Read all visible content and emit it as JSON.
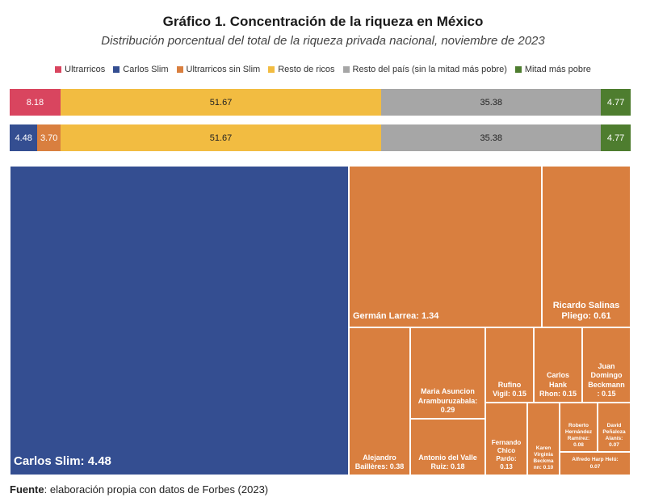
{
  "title": "Gráfico 1. Concentración de la riqueza en México",
  "subtitle": "Distribución porcentual del total de la riqueza privada nacional, noviembre de 2023",
  "legend": [
    {
      "label": "Ultrarricos",
      "color": "#d9455f"
    },
    {
      "label": "Carlos Slim",
      "color": "#344e91"
    },
    {
      "label": "Ultrarricos sin Slim",
      "color": "#d97f3f"
    },
    {
      "label": "Resto de ricos",
      "color": "#f2bc41"
    },
    {
      "label": "Resto del país (sin la mitad más pobre)",
      "color": "#a6a6a6"
    },
    {
      "label": "Mitad más pobre",
      "color": "#4e7d2f"
    }
  ],
  "chart_data": [
    {
      "type": "bar",
      "orientation": "horizontal-stacked",
      "series": [
        {
          "name": "Ultrarricos",
          "value": 8.18,
          "label": "8.18",
          "color": "#d9455f"
        },
        {
          "name": "Resto de ricos",
          "value": 51.67,
          "label": "51.67",
          "color": "#f2bc41"
        },
        {
          "name": "Resto del país (sin la mitad más pobre)",
          "value": 35.38,
          "label": "35.38",
          "color": "#a6a6a6"
        },
        {
          "name": "Mitad más pobre",
          "value": 4.77,
          "label": "4.77",
          "color": "#4e7d2f"
        }
      ]
    },
    {
      "type": "bar",
      "orientation": "horizontal-stacked",
      "series": [
        {
          "name": "Carlos Slim",
          "value": 4.48,
          "label": "4.48",
          "color": "#344e91"
        },
        {
          "name": "Ultrarricos sin Slim",
          "value": 3.7,
          "label": "3.70",
          "color": "#d97f3f"
        },
        {
          "name": "Resto de ricos",
          "value": 51.67,
          "label": "51.67",
          "color": "#f2bc41"
        },
        {
          "name": "Resto del país (sin la mitad más pobre)",
          "value": 35.38,
          "label": "35.38",
          "color": "#a6a6a6"
        },
        {
          "name": "Mitad más pobre",
          "value": 4.77,
          "label": "4.77",
          "color": "#4e7d2f"
        }
      ]
    },
    {
      "type": "treemap",
      "items": [
        {
          "name": "Carlos Slim",
          "value": 4.48,
          "label": "Carlos Slim: 4.48",
          "color": "#344e91"
        },
        {
          "name": "Germán Larrea",
          "value": 1.34,
          "label": "Germán Larrea: 1.34",
          "color": "#d97f3f"
        },
        {
          "name": "Ricardo Salinas Pliego",
          "value": 0.61,
          "label": "Ricardo Salinas\nPliego: 0.61",
          "color": "#d97f3f"
        },
        {
          "name": "Alejandro Baillères",
          "value": 0.38,
          "label": "Alejandro\nBaillères: 0.38",
          "color": "#d97f3f"
        },
        {
          "name": "Maria Asuncion Aramburuzabala",
          "value": 0.29,
          "label": "Maria Asuncion\nAramburuzabala:\n0.29",
          "color": "#d97f3f"
        },
        {
          "name": "Antonio del Valle Ruiz",
          "value": 0.18,
          "label": "Antonio del Valle\nRuiz: 0.18",
          "color": "#d97f3f"
        },
        {
          "name": "Rufino Vigil",
          "value": 0.15,
          "label": "Rufino\nVigil: 0.15",
          "color": "#d97f3f"
        },
        {
          "name": "Carlos Hank Rhon",
          "value": 0.15,
          "label": "Carlos\nHank\nRhon: 0.15",
          "color": "#d97f3f"
        },
        {
          "name": "Juan Domingo Beckmann",
          "value": 0.15,
          "label": "Juan\nDomingo\nBeckmann\n: 0.15",
          "color": "#d97f3f"
        },
        {
          "name": "Fernando Chico Pardo",
          "value": 0.13,
          "label": "Fernando\nChico\nPardo:\n0.13",
          "color": "#d97f3f"
        },
        {
          "name": "Karen Virginia Beckmann",
          "value": 0.1,
          "label": "Karen\nVirginia\nBeckma\nnn: 0.10",
          "color": "#d97f3f"
        },
        {
          "name": "Roberto Hernández Ramírez",
          "value": 0.08,
          "label": "Roberto\nHernández\nRamírez:\n0.08",
          "color": "#d97f3f"
        },
        {
          "name": "David Peñaloza Alanís",
          "value": 0.07,
          "label": "David\nPeñaloza\nAlanís:\n0.07",
          "color": "#d97f3f"
        },
        {
          "name": "Alfredo Harp Helú",
          "value": 0.07,
          "label": "Alfredo Harp Helú:\n0.07",
          "color": "#d97f3f"
        }
      ]
    }
  ],
  "source": {
    "label": "Fuente",
    "text": ": elaboración propia con datos de Forbes (2023)"
  }
}
